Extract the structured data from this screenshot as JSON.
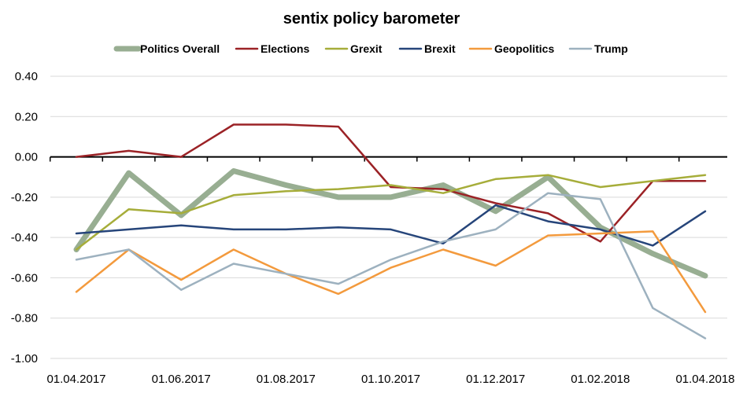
{
  "chart_data": {
    "type": "line",
    "title": "sentix policy barometer",
    "xlabel": "",
    "ylabel": "",
    "ylim": [
      -1.0,
      0.4
    ],
    "yticks": [
      0.4,
      0.2,
      0.0,
      -0.2,
      -0.4,
      -0.6,
      -0.8,
      -1.0
    ],
    "ytick_labels": [
      "0.40",
      "0.20",
      "0.00",
      "-0.20",
      "-0.40",
      "-0.60",
      "-0.80",
      "-1.00"
    ],
    "x": [
      "01.04.2017",
      "01.05.2017",
      "01.06.2017",
      "01.07.2017",
      "01.08.2017",
      "01.09.2017",
      "01.10.2017",
      "01.11.2017",
      "01.12.2017",
      "01.01.2018",
      "01.02.2018",
      "01.03.2018",
      "01.04.2018"
    ],
    "xtick_labels": [
      "01.04.2017",
      "01.06.2017",
      "01.08.2017",
      "01.10.2017",
      "01.12.2017",
      "01.02.2018",
      "01.04.2018"
    ],
    "grid": "horizontal",
    "legend_position": "top",
    "series": [
      {
        "name": "Politics Overall",
        "color": "#98ae92",
        "width": 7,
        "values": [
          -0.46,
          -0.08,
          -0.29,
          -0.07,
          -0.14,
          -0.2,
          -0.2,
          -0.14,
          -0.27,
          -0.1,
          -0.35,
          -0.48,
          -0.59
        ]
      },
      {
        "name": "Elections",
        "color": "#9b2226",
        "width": 2.5,
        "values": [
          0.0,
          0.03,
          0.0,
          0.16,
          0.16,
          0.15,
          -0.15,
          -0.16,
          -0.23,
          -0.28,
          -0.42,
          -0.12,
          -0.12
        ]
      },
      {
        "name": "Grexit",
        "color": "#a6ad3a",
        "width": 2.5,
        "values": [
          -0.46,
          -0.26,
          -0.28,
          -0.19,
          -0.17,
          -0.16,
          -0.14,
          -0.18,
          -0.11,
          -0.09,
          -0.15,
          -0.12,
          -0.09
        ]
      },
      {
        "name": "Brexit",
        "color": "#26457a",
        "width": 2.5,
        "values": [
          -0.38,
          -0.36,
          -0.34,
          -0.36,
          -0.36,
          -0.35,
          -0.36,
          -0.43,
          -0.24,
          -0.32,
          -0.36,
          -0.44,
          -0.27
        ]
      },
      {
        "name": "Geopolitics",
        "color": "#f39a3d",
        "width": 2.5,
        "values": [
          -0.67,
          -0.46,
          -0.61,
          -0.46,
          -0.58,
          -0.68,
          -0.55,
          -0.46,
          -0.54,
          -0.39,
          -0.38,
          -0.37,
          -0.77
        ]
      },
      {
        "name": "Trump",
        "color": "#9db1bf",
        "width": 2.5,
        "values": [
          -0.51,
          -0.46,
          -0.66,
          -0.53,
          -0.58,
          -0.63,
          -0.51,
          -0.42,
          -0.36,
          -0.18,
          -0.21,
          -0.75,
          -0.9
        ]
      }
    ]
  }
}
